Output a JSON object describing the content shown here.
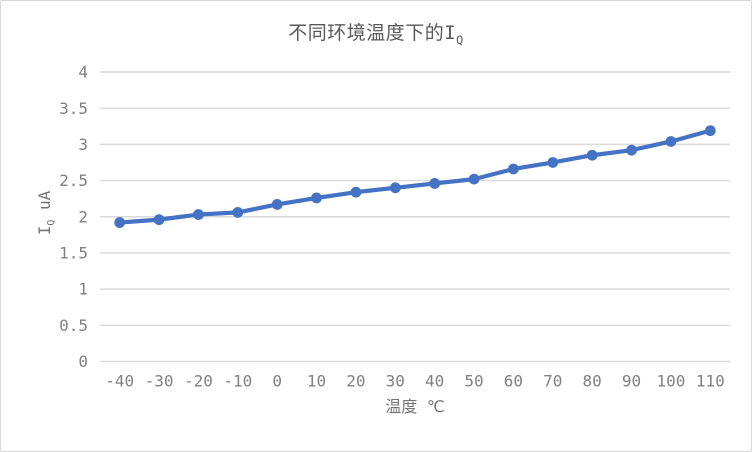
{
  "chart_data": {
    "type": "line",
    "title_main": "不同环境温度下的I",
    "title_sub": "Q",
    "xlabel": "温度 ℃",
    "ylabel_main": "I",
    "ylabel_sub": "Q",
    "ylabel_unit": " uA",
    "categories": [
      -40,
      -30,
      -20,
      -10,
      0,
      10,
      20,
      30,
      40,
      50,
      60,
      70,
      80,
      90,
      100,
      110
    ],
    "series": [
      {
        "name": "IQ",
        "values": [
          1.92,
          1.96,
          2.03,
          2.06,
          2.17,
          2.26,
          2.34,
          2.4,
          2.46,
          2.52,
          2.66,
          2.75,
          2.85,
          2.92,
          3.04,
          3.19
        ]
      }
    ],
    "ylim": [
      0,
      4
    ],
    "ytick_step": 0.5,
    "yticks": [
      0,
      0.5,
      1,
      1.5,
      2,
      2.5,
      3,
      3.5,
      4
    ],
    "grid": true,
    "legend": "none",
    "line_color": "#4472C4",
    "grid_color": "#D9D9D9",
    "tick_label_color": "#808080",
    "title_color": "#595959"
  }
}
